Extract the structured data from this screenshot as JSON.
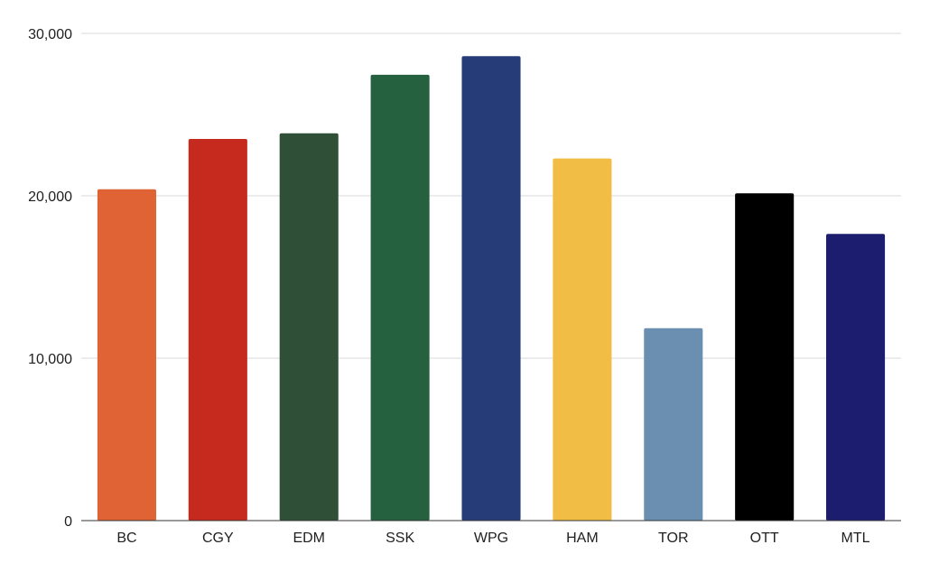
{
  "chart_data": {
    "type": "bar",
    "title": "",
    "xlabel": "",
    "ylabel": "",
    "categories": [
      "BC",
      "CGY",
      "EDM",
      "SSK",
      "WPG",
      "HAM",
      "TOR",
      "OTT",
      "MTL"
    ],
    "values": [
      20400,
      23500,
      23850,
      27450,
      28600,
      22300,
      11850,
      20150,
      17650
    ],
    "colors": [
      "#e06336",
      "#c62a1f",
      "#2f4f36",
      "#25613f",
      "#263c78",
      "#f2bd44",
      "#6a8fb0",
      "#000000",
      "#1d1d70"
    ],
    "ylim": [
      0,
      30000
    ],
    "yticks": [
      0,
      10000,
      20000,
      30000
    ],
    "ytick_labels": [
      "0",
      "10,000",
      "20,000",
      "30,000"
    ],
    "grid": true,
    "legend": "none"
  }
}
